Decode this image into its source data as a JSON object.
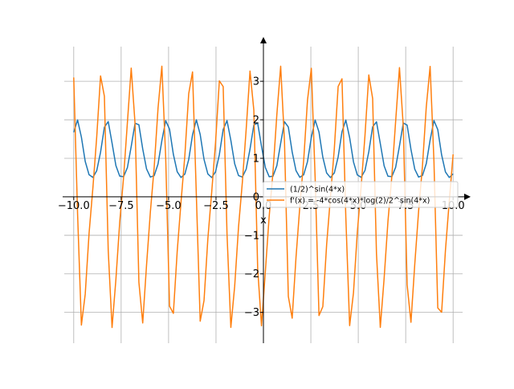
{
  "chart_data": {
    "type": "line",
    "title": "",
    "xlabel": "x",
    "ylabel": "",
    "xlim": [
      -10.5,
      10.5
    ],
    "ylim": [
      -3.8,
      3.9
    ],
    "x_ticks": [
      -10,
      -7.5,
      -5,
      -2.5,
      0,
      2.5,
      5,
      7.5,
      10
    ],
    "x_tick_labels": [
      "−10.0",
      "−7.5",
      "−5.0",
      "−2.5",
      "0.0",
      "2.5",
      "5.0",
      "7.5",
      "10.0"
    ],
    "y_ticks": [
      -3,
      -2,
      -1,
      0,
      1,
      2,
      3
    ],
    "y_tick_labels": [
      "−3",
      "−2",
      "−1",
      "0",
      "1",
      "2",
      "3"
    ],
    "grid": true,
    "axes_style": "centered spines with arrowheads",
    "legend_position": "right, just below x-axis",
    "x_range_sampled": [
      -10,
      10
    ],
    "samples": 100,
    "series": [
      {
        "name": "(1/2)^sin(4*x)",
        "color": "#1f77b4"
      },
      {
        "name": "f'(x) = -4*cos(4*x)*log(2)/2^sin(4*x)",
        "color": "#ff7f0e"
      }
    ]
  }
}
